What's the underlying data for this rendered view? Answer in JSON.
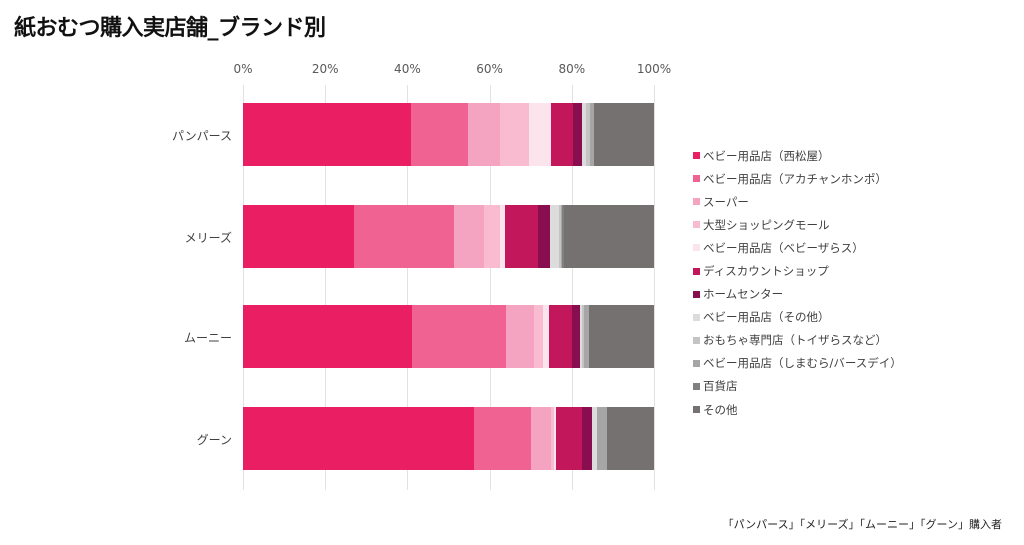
{
  "chart_data": {
    "type": "bar",
    "orientation": "horizontal",
    "stacked": true,
    "normalized": true,
    "title": "紙おむつ購入実店舗_ブランド別",
    "xticks": [
      "0%",
      "20%",
      "40%",
      "60%",
      "80%",
      "100%"
    ],
    "xlim": [
      0,
      100
    ],
    "grid": true,
    "legend_position": "right",
    "categories": [
      "パンパース",
      "メリーズ",
      "ムーニー",
      "グーン"
    ],
    "series": [
      {
        "name": "ベビー用品店（西松屋）",
        "color": "#E91E63",
        "values": [
          40.8,
          27.0,
          41.0,
          56.2
        ]
      },
      {
        "name": "ベビー用品店（アカチャンホンポ）",
        "color": "#F06292",
        "values": [
          14.0,
          24.2,
          23.0,
          13.9
        ]
      },
      {
        "name": "スーパー",
        "color": "#F4A4C0",
        "values": [
          7.7,
          7.1,
          6.9,
          4.8
        ]
      },
      {
        "name": "大型ショッピングモール",
        "color": "#F8BBD0",
        "values": [
          7.1,
          4.0,
          2.1,
          0.8
        ]
      },
      {
        "name": "ベビー用品店（ベビーザらス）",
        "color": "#FCE4EC",
        "values": [
          5.3,
          1.3,
          1.4,
          0.5
        ]
      },
      {
        "name": "ディスカウントショップ",
        "color": "#C2185B",
        "values": [
          5.3,
          7.9,
          5.6,
          6.3
        ]
      },
      {
        "name": "ホームセンター",
        "color": "#880E4F",
        "values": [
          2.4,
          3.0,
          2.0,
          2.4
        ]
      },
      {
        "name": "ベビー用品店（その他）",
        "color": "#DCDCDC",
        "values": [
          0.9,
          2.1,
          0.6,
          1.2
        ]
      },
      {
        "name": "おもちゃ専門店（トイザらスなど）",
        "color": "#C4C4C4",
        "values": [
          0.9,
          0.4,
          0.5,
          0.0
        ]
      },
      {
        "name": "ベビー用品店（しまむら/バースデイ）",
        "color": "#A6A6A6",
        "values": [
          1.0,
          0.4,
          1.0,
          2.5
        ]
      },
      {
        "name": "百貨店",
        "color": "#808080",
        "values": [
          0.0,
          0.3,
          0.0,
          0.0
        ]
      },
      {
        "name": "その他",
        "color": "#767171",
        "values": [
          14.6,
          21.9,
          15.9,
          11.3
        ]
      }
    ],
    "note": "「パンパース」「メリーズ」「ムーニー」「グーン」購入者"
  }
}
